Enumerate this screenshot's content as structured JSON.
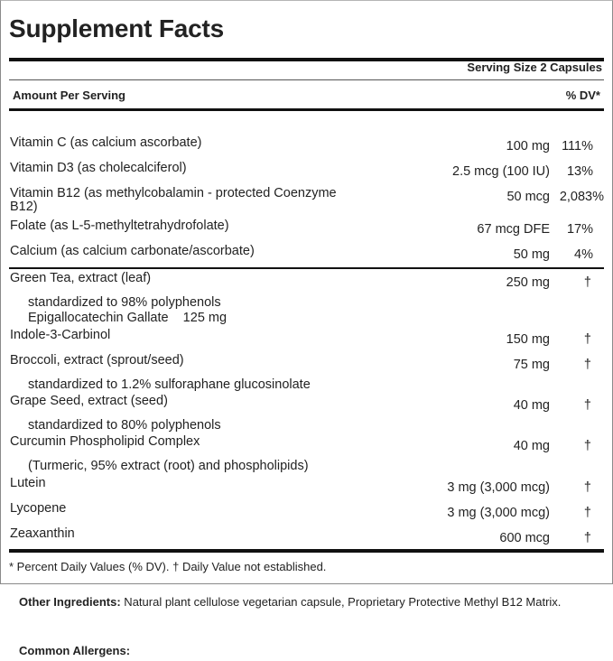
{
  "panel": {
    "title": "Supplement Facts",
    "serving_size": "Serving Size 2 Capsules",
    "amount_per_serving": "Amount Per Serving",
    "dv_header": "% DV*",
    "vitamins": [
      {
        "name": "Vitamin C (as calcium ascorbate)",
        "amount": "100 mg",
        "dv": "111%"
      },
      {
        "name": "Vitamin D3 (as cholecalciferol)",
        "amount": "2.5 mcg (100 IU)",
        "dv": "13%"
      },
      {
        "name": "Vitamin B12 (as methylcobalamin - protected Coenzyme",
        "name_line2": "B12)",
        "amount": "50 mcg",
        "dv": "2,083%"
      },
      {
        "name": "Folate (as L-5-methyltetrahydrofolate)",
        "amount": "67 mcg DFE",
        "dv": "17%"
      },
      {
        "name": "Calcium (as calcium carbonate/ascorbate)",
        "amount": "50 mg",
        "dv": "4%"
      }
    ],
    "others": {
      "green_tea": {
        "name": "Green Tea, extract (leaf)",
        "amount": "250 mg",
        "dv": "†"
      },
      "green_tea_sub1": "standardized to 98% polyphenols",
      "green_tea_sub2": "Epigallocatechin Gallate    125 mg",
      "indole": {
        "name": "Indole-3-Carbinol",
        "amount": "150 mg",
        "dv": "†"
      },
      "broccoli": {
        "name": "Broccoli, extract (sprout/seed)",
        "amount": "75 mg",
        "dv": "†"
      },
      "broccoli_sub": "standardized to 1.2% sulforaphane glucosinolate",
      "grape": {
        "name": "Grape Seed, extract (seed)",
        "amount": "40 mg",
        "dv": "†"
      },
      "grape_sub": "standardized to 80% polyphenols",
      "curcumin": {
        "name": "Curcumin Phospholipid Complex",
        "amount": "40 mg",
        "dv": "†"
      },
      "curcumin_sub": "(Turmeric, 95% extract (root) and phospholipids)",
      "lutein": {
        "name": "Lutein",
        "amount": "3 mg (3,000 mcg)",
        "dv": "†"
      },
      "lycopene": {
        "name": "Lycopene",
        "amount": "3 mg (3,000 mcg)",
        "dv": "†"
      },
      "zeaxanthin": {
        "name": "Zeaxanthin",
        "amount": "600 mcg",
        "dv": "†"
      }
    },
    "footnote": "* Percent Daily Values (% DV). † Daily Value not established."
  },
  "other_ingredients": {
    "label": "Other Ingredients:",
    "text": " Natural plant cellulose vegetarian capsule, Proprietary Protective Methyl B12 Matrix."
  },
  "allergens": {
    "label": "Common Allergens:"
  }
}
